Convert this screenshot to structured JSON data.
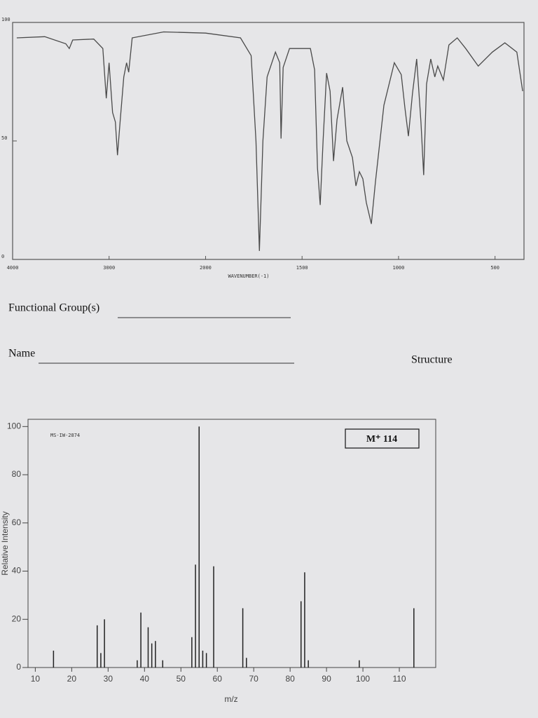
{
  "chart_data": [
    {
      "type": "line",
      "xlabel": "WAVENUMBER(-1)",
      "color": "#4a4a4a",
      "x": [
        3957,
        3667,
        3449,
        3413,
        3377,
        3159,
        3065,
        3029,
        3000,
        2964,
        2935,
        2913,
        2884,
        2848,
        2819,
        2797,
        2761,
        2435,
        2000,
        1819,
        1764,
        1739,
        1721,
        1703,
        1681,
        1638,
        1616,
        1609,
        1598,
        1565,
        1457,
        1435,
        1420,
        1406,
        1391,
        1373,
        1355,
        1337,
        1319,
        1290,
        1268,
        1239,
        1221,
        1203,
        1185,
        1167,
        1141,
        1120,
        1076,
        1022,
        986,
        967,
        949,
        928,
        906,
        884,
        870,
        855,
        833,
        812,
        797,
        768,
        739,
        696,
        652,
        587,
        514,
        449,
        387,
        357
      ],
      "values": [
        93.5,
        94,
        91,
        89,
        92.6,
        93,
        89,
        68,
        83,
        62,
        58,
        44,
        59,
        77,
        83,
        79,
        93.5,
        96,
        95.5,
        93.5,
        86,
        50,
        3.6,
        50,
        77,
        87.5,
        83,
        51,
        81,
        89,
        89,
        80,
        38.6,
        23,
        50,
        78.6,
        71,
        41.5,
        59,
        72.7,
        50,
        43,
        31,
        37,
        34,
        24,
        15,
        32.6,
        65,
        83,
        78,
        64,
        52,
        70,
        84.6,
        58,
        35.6,
        74,
        84.6,
        77,
        81.6,
        75.7,
        90.5,
        93.5,
        89,
        81.6,
        87.5,
        91.4,
        87.5,
        71
      ],
      "xlim": [
        4000,
        350
      ],
      "xticks": [
        4000,
        3000,
        2000,
        1500,
        1000,
        500
      ],
      "ylim": [
        0,
        100
      ],
      "yticks": [
        0,
        50,
        100
      ]
    },
    {
      "type": "bar",
      "xlabel": "m/z",
      "ylabel": "Relative Intensity",
      "annotation": "MS-IW-2874",
      "molecular_ion": "M⁺ 114",
      "color": "#222222",
      "x": [
        15,
        27,
        28,
        29,
        38,
        39,
        41,
        42,
        43,
        45,
        53,
        54,
        55,
        56,
        57,
        59,
        67,
        68,
        83,
        84,
        85,
        99,
        114
      ],
      "values": [
        7,
        17.5,
        6,
        20,
        3,
        22.8,
        16.7,
        10,
        11,
        3,
        12.6,
        42.7,
        100,
        7,
        6,
        42,
        24.6,
        4,
        27.5,
        39.5,
        3,
        3,
        24.6
      ],
      "xlim": [
        8,
        120
      ],
      "xticks": [
        10,
        20,
        30,
        40,
        50,
        60,
        70,
        80,
        90,
        100,
        110
      ],
      "ylim": [
        0,
        103
      ],
      "yticks": [
        0,
        20,
        40,
        60,
        80,
        100
      ]
    }
  ],
  "worksheet": {
    "labels": [
      "Functional Group(s)",
      "Name",
      "Structure"
    ]
  }
}
